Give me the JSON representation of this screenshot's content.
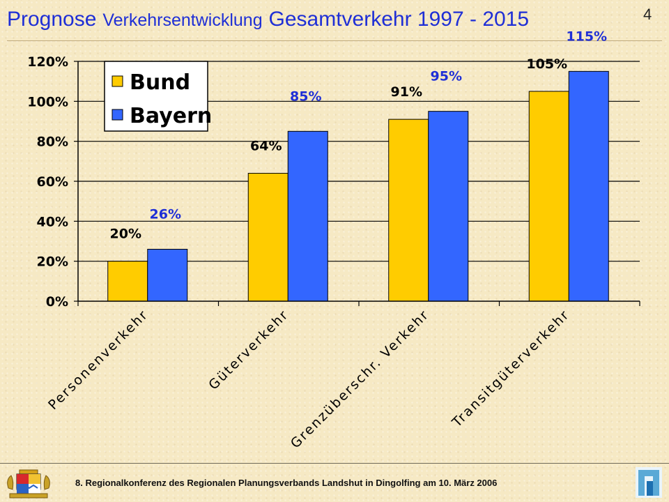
{
  "header": {
    "title_part1": "Prognose",
    "title_part2": "Verkehrsentwicklung",
    "title_part3": "Gesamtverkehr 1997 - 2015",
    "page_number": "4"
  },
  "footer": {
    "text": "8. Regionalkonferenz des Regionalen Planungsverbands Landshut in Dingolfing am 10. März 2006",
    "crest_icon": "bavarian-coat-of-arms-icon",
    "logo_icon": "planning-association-logo-icon"
  },
  "colors": {
    "title": "#1f2fd6",
    "bund": "#ffcc00",
    "bayern": "#3366ff",
    "bayern_label": "#1f2fd6"
  },
  "chart_data": {
    "type": "bar",
    "title": "",
    "xlabel": "",
    "ylabel": "",
    "categories": [
      "Personenverkehr",
      "Güterverkehr",
      "Grenzüberschr. Verkehr",
      "Transitgüterverkehr"
    ],
    "series": [
      {
        "name": "Bund",
        "values": [
          20,
          64,
          91,
          105
        ],
        "labels": [
          "20%",
          "64%",
          "91%",
          "105%"
        ]
      },
      {
        "name": "Bayern",
        "values": [
          26,
          85,
          95,
          115
        ],
        "labels": [
          "26%",
          "85%",
          "95%",
          "115%"
        ]
      }
    ],
    "ylim": [
      0,
      120
    ],
    "yticks": [
      0,
      20,
      40,
      60,
      80,
      100,
      120
    ],
    "ytick_labels": [
      "0%",
      "20%",
      "40%",
      "60%",
      "80%",
      "100%",
      "120%"
    ],
    "grid": true,
    "legend_placement": "top-left"
  }
}
